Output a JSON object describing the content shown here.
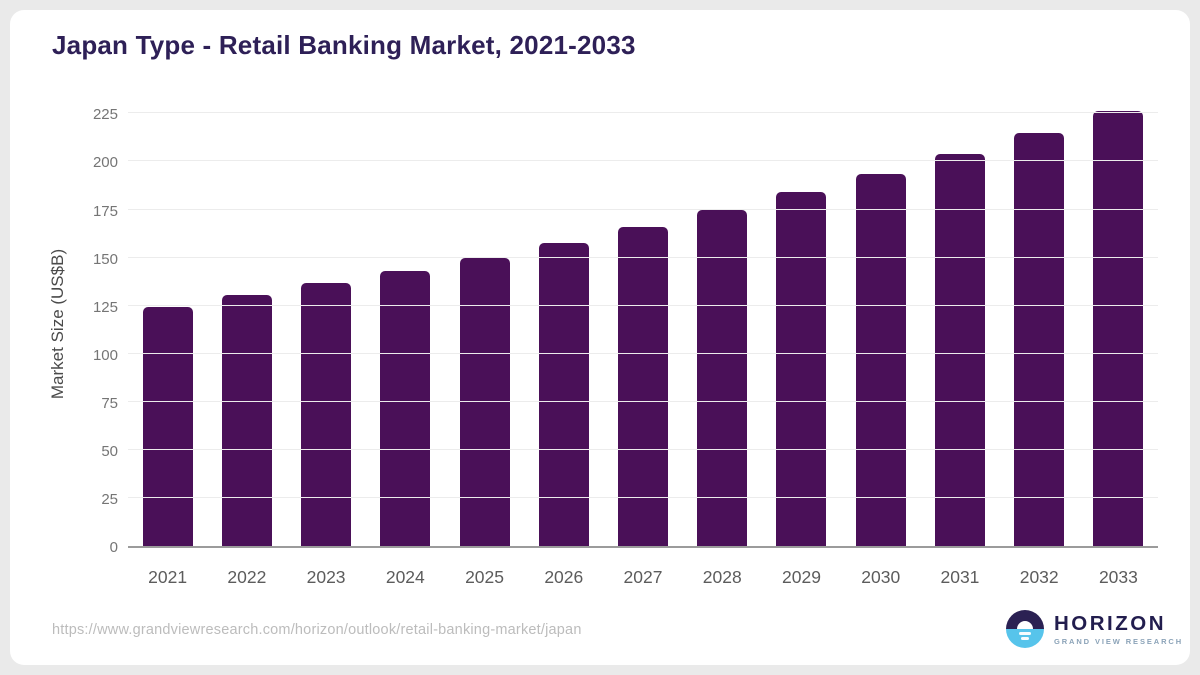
{
  "header": {
    "title": "Japan Type - Retail Banking Market, 2021-2033"
  },
  "footer": {
    "source_url": "https://www.grandviewresearch.com/horizon/outlook/retail-banking-market/japan",
    "logo": {
      "name": "HORIZON",
      "subtitle": "GRAND VIEW RESEARCH"
    }
  },
  "colors": {
    "bar": "#4a1058",
    "title": "#2e2057",
    "logo_navy": "#2b2153",
    "logo_blue": "#57c4eb",
    "axis_line": "#9b9b9b",
    "gridline": "#ececec"
  },
  "chart_data": {
    "type": "bar",
    "title": "Japan Type - Retail Banking Market, 2021-2033",
    "xlabel": "",
    "ylabel": "Market Size (US$B)",
    "categories": [
      "2021",
      "2022",
      "2023",
      "2024",
      "2025",
      "2026",
      "2027",
      "2028",
      "2029",
      "2030",
      "2031",
      "2032",
      "2033"
    ],
    "values": [
      124.5,
      130.4,
      136.6,
      142.9,
      150.0,
      157.7,
      166.0,
      174.6,
      183.9,
      193.4,
      203.8,
      214.7,
      226.1
    ],
    "yticks": [
      0,
      25,
      50,
      75,
      100,
      125,
      150,
      175,
      200,
      225
    ],
    "ylim": [
      0,
      233
    ],
    "grid": "horizontal",
    "legend": "none",
    "bar_color": "#4a1058"
  }
}
